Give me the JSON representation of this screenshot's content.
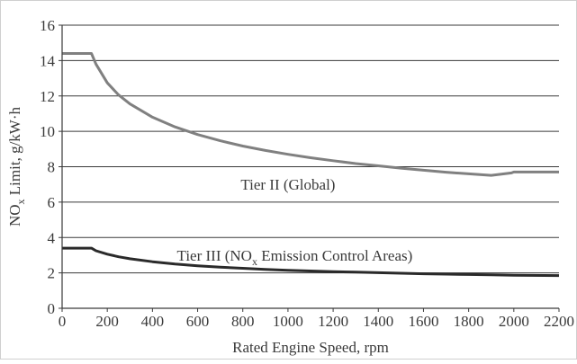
{
  "chart_data": {
    "type": "line",
    "title": "",
    "xlabel": "Rated Engine Speed, rpm",
    "ylabel": {
      "prefix": "NO",
      "sub": "x",
      "suffix": " Limit, g/kW·h"
    },
    "xlim": [
      0,
      2200
    ],
    "ylim": [
      0,
      16
    ],
    "xticks": [
      0,
      200,
      400,
      600,
      800,
      1000,
      1200,
      1400,
      1600,
      1800,
      2000,
      2200
    ],
    "yticks": [
      0,
      2,
      4,
      6,
      8,
      10,
      12,
      14,
      16
    ],
    "grid": "horizontal",
    "series": [
      {
        "label": {
          "text": "Tier II (Global)"
        },
        "color": "#808080",
        "x": [
          0,
          130,
          150,
          200,
          250,
          300,
          400,
          500,
          600,
          700,
          800,
          900,
          1000,
          1100,
          1200,
          1300,
          1400,
          1500,
          1600,
          1700,
          1800,
          1900,
          1990,
          2000,
          2200
        ],
        "y": [
          14.4,
          14.4,
          13.8,
          12.74,
          12.06,
          11.55,
          10.8,
          10.25,
          9.82,
          9.47,
          9.17,
          8.92,
          8.7,
          8.51,
          8.34,
          8.18,
          8.05,
          7.92,
          7.8,
          7.69,
          7.6,
          7.51,
          7.65,
          7.7,
          7.7
        ]
      },
      {
        "label": {
          "text_pre": "Tier III (NO",
          "text_sub": "x",
          "text_post": " Emission Control Areas)"
        },
        "color": "#2a2a2a",
        "x": [
          0,
          130,
          150,
          200,
          250,
          300,
          400,
          500,
          600,
          700,
          800,
          900,
          1000,
          1100,
          1200,
          1300,
          1400,
          1500,
          1600,
          1700,
          1800,
          1900,
          2000,
          2200
        ],
        "y": [
          3.4,
          3.4,
          3.25,
          3.06,
          2.91,
          2.8,
          2.63,
          2.5,
          2.4,
          2.32,
          2.26,
          2.2,
          2.15,
          2.11,
          2.07,
          2.04,
          2.01,
          1.98,
          1.95,
          1.93,
          1.91,
          1.89,
          1.87,
          1.85
        ]
      }
    ]
  }
}
